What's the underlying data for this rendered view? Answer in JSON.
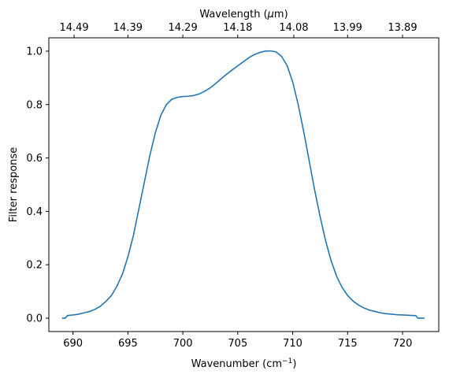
{
  "chart_data": {
    "type": "line",
    "title": "",
    "xlabel_main": "Wavenumber (cm",
    "xlabel_sup": "−1",
    "xlabel_close": ")",
    "ylabel": "Filter response",
    "top_xlabel_prefix": "Wavelength (",
    "top_xlabel_mu": "μ",
    "top_xlabel_suffix": "m)",
    "xlim": [
      687.8,
      723.3
    ],
    "ylim": [
      -0.05,
      1.05
    ],
    "xticks": [
      690,
      695,
      700,
      705,
      710,
      715,
      720
    ],
    "xtick_labels": [
      "690",
      "695",
      "700",
      "705",
      "710",
      "715",
      "720"
    ],
    "yticks": [
      0.0,
      0.2,
      0.4,
      0.6,
      0.8,
      1.0
    ],
    "ytick_labels": [
      "0.0",
      "0.2",
      "0.4",
      "0.6",
      "0.8",
      "1.0"
    ],
    "top_ticks": [
      {
        "position": 690.1,
        "label": "14.49"
      },
      {
        "position": 695.0,
        "label": "14.39"
      },
      {
        "position": 700.0,
        "label": "14.29"
      },
      {
        "position": 705.0,
        "label": "14.18"
      },
      {
        "position": 710.1,
        "label": "14.08"
      },
      {
        "position": 715.0,
        "label": "13.99"
      },
      {
        "position": 720.0,
        "label": "13.89"
      }
    ],
    "grid": false,
    "series": [
      {
        "color": "#1f77b4",
        "points": [
          [
            689.0,
            0.0
          ],
          [
            689.3,
            0.0
          ],
          [
            689.5,
            0.01
          ],
          [
            690.0,
            0.012
          ],
          [
            690.5,
            0.015
          ],
          [
            691.0,
            0.02
          ],
          [
            691.5,
            0.025
          ],
          [
            692.0,
            0.033
          ],
          [
            692.5,
            0.045
          ],
          [
            693.0,
            0.063
          ],
          [
            693.5,
            0.085
          ],
          [
            694.0,
            0.12
          ],
          [
            694.5,
            0.165
          ],
          [
            695.0,
            0.23
          ],
          [
            695.5,
            0.31
          ],
          [
            696.0,
            0.41
          ],
          [
            696.5,
            0.51
          ],
          [
            697.0,
            0.61
          ],
          [
            697.5,
            0.695
          ],
          [
            698.0,
            0.76
          ],
          [
            698.5,
            0.8
          ],
          [
            699.0,
            0.82
          ],
          [
            699.5,
            0.827
          ],
          [
            700.0,
            0.83
          ],
          [
            700.5,
            0.831
          ],
          [
            701.0,
            0.834
          ],
          [
            701.5,
            0.84
          ],
          [
            702.0,
            0.85
          ],
          [
            702.5,
            0.863
          ],
          [
            703.0,
            0.879
          ],
          [
            703.5,
            0.897
          ],
          [
            704.0,
            0.914
          ],
          [
            704.5,
            0.93
          ],
          [
            705.0,
            0.945
          ],
          [
            705.5,
            0.96
          ],
          [
            706.0,
            0.975
          ],
          [
            706.5,
            0.987
          ],
          [
            707.0,
            0.995
          ],
          [
            707.5,
            1.0
          ],
          [
            708.0,
            1.001
          ],
          [
            708.5,
            0.997
          ],
          [
            709.0,
            0.98
          ],
          [
            709.5,
            0.945
          ],
          [
            710.0,
            0.885
          ],
          [
            710.5,
            0.8
          ],
          [
            711.0,
            0.7
          ],
          [
            711.5,
            0.59
          ],
          [
            712.0,
            0.48
          ],
          [
            712.5,
            0.38
          ],
          [
            713.0,
            0.29
          ],
          [
            713.5,
            0.215
          ],
          [
            714.0,
            0.157
          ],
          [
            714.5,
            0.115
          ],
          [
            715.0,
            0.085
          ],
          [
            715.5,
            0.064
          ],
          [
            716.0,
            0.049
          ],
          [
            716.5,
            0.038
          ],
          [
            717.0,
            0.03
          ],
          [
            717.5,
            0.025
          ],
          [
            718.0,
            0.02
          ],
          [
            718.5,
            0.017
          ],
          [
            719.0,
            0.015
          ],
          [
            719.5,
            0.013
          ],
          [
            720.0,
            0.012
          ],
          [
            720.5,
            0.011
          ],
          [
            721.0,
            0.01
          ],
          [
            721.2,
            0.01
          ],
          [
            721.4,
            0.0
          ],
          [
            722.0,
            0.0
          ]
        ]
      }
    ]
  }
}
